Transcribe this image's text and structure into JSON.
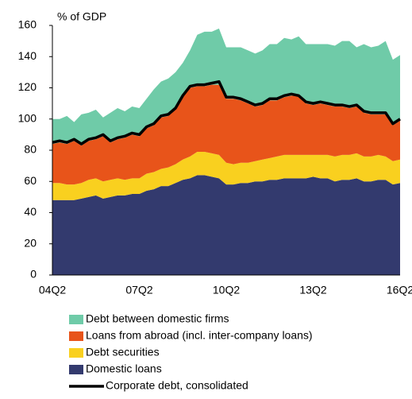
{
  "chart_data": {
    "type": "stacked_area",
    "y_axis_label": "% of GDP",
    "categories": [
      "04Q2",
      null,
      null,
      null,
      null,
      null,
      null,
      null,
      null,
      null,
      null,
      null,
      "07Q2",
      null,
      null,
      null,
      null,
      null,
      null,
      null,
      null,
      null,
      null,
      null,
      "10Q2",
      null,
      null,
      null,
      null,
      null,
      null,
      null,
      null,
      null,
      null,
      null,
      "13Q2",
      null,
      null,
      null,
      null,
      null,
      null,
      null,
      null,
      null,
      null,
      null,
      "16Q2"
    ],
    "ylim": [
      0,
      160
    ],
    "yticks": [
      0,
      20,
      40,
      60,
      80,
      100,
      120,
      140,
      160
    ],
    "series": [
      {
        "name": "Domestic loans",
        "color": "#333a6e",
        "values": [
          48,
          48,
          48,
          48,
          49,
          50,
          51,
          49,
          50,
          51,
          51,
          52,
          52,
          54,
          55,
          57,
          57,
          59,
          61,
          62,
          64,
          64,
          63,
          62,
          58,
          58,
          59,
          59,
          60,
          60,
          61,
          61,
          62,
          62,
          62,
          62,
          63,
          62,
          62,
          60,
          61,
          61,
          62,
          60,
          60,
          61,
          61,
          58,
          59
        ]
      },
      {
        "name": "Debt securities",
        "color": "#f9d01f",
        "values": [
          11,
          11,
          10,
          10,
          10,
          11,
          11,
          11,
          11,
          11,
          10,
          10,
          10,
          11,
          11,
          11,
          12,
          12,
          13,
          14,
          15,
          15,
          15,
          15,
          14,
          13,
          13,
          13,
          13,
          14,
          14,
          15,
          15,
          15,
          15,
          15,
          14,
          15,
          15,
          16,
          16,
          16,
          16,
          16,
          16,
          16,
          15,
          15,
          15
        ]
      },
      {
        "name": "Loans from abroad (incl. inter-company loans)",
        "color": "#e8541a",
        "values": [
          25,
          26,
          26,
          28,
          24,
          25,
          25,
          29,
          24,
          25,
          27,
          28,
          27,
          29,
          30,
          33,
          33,
          35,
          40,
          44,
          42,
          42,
          44,
          45,
          41,
          42,
          40,
          38,
          35,
          35,
          37,
          36,
          37,
          38,
          38,
          33,
          32,
          33,
          32,
          32,
          31,
          30,
          30,
          28,
          27,
          26,
          27,
          23,
          25
        ]
      },
      {
        "name": "Debt between domestic firms",
        "color": "#6fcba8",
        "values": [
          16,
          15,
          18,
          12,
          20,
          18,
          19,
          12,
          19,
          20,
          17,
          18,
          18,
          19,
          23,
          23,
          24,
          24,
          22,
          24,
          33,
          35,
          34,
          36,
          33,
          33,
          34,
          34,
          34,
          35,
          36,
          36,
          38,
          36,
          38,
          38,
          39,
          38,
          39,
          39,
          42,
          43,
          38,
          44,
          43,
          44,
          47,
          42,
          42
        ]
      },
      {
        "name": "Corporate debt, consolidated",
        "color": "#000000",
        "kind": "line",
        "values": [
          85,
          86,
          85,
          87,
          84,
          87,
          88,
          90,
          86,
          88,
          89,
          91,
          90,
          95,
          97,
          102,
          103,
          107,
          115,
          121,
          122,
          122,
          123,
          124,
          114,
          114,
          113,
          111,
          109,
          110,
          113,
          113,
          115,
          116,
          115,
          111,
          110,
          111,
          110,
          109,
          109,
          108,
          109,
          105,
          104,
          104,
          104,
          97,
          100
        ]
      }
    ]
  }
}
